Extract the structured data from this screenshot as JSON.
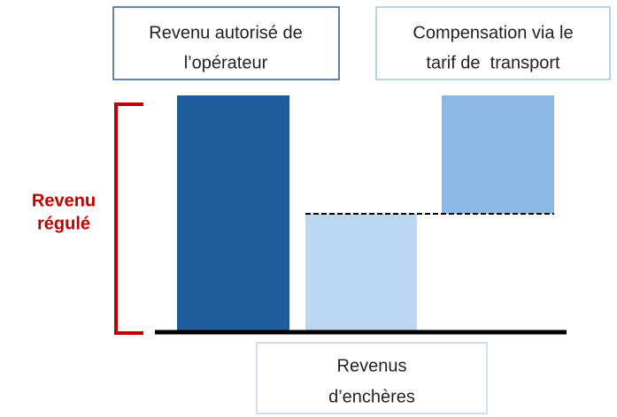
{
  "boxes": [
    {
      "lines": [
        "Revenu autorisé de",
        "l’opérateur"
      ]
    },
    {
      "lines": [
        "Compensation via le",
        "tarif de  transport"
      ]
    },
    {
      "lines": [
        "Revenus",
        "d’enchères"
      ]
    }
  ],
  "bracket_label": {
    "lines": [
      "Revenu",
      "régulé"
    ]
  }
}
